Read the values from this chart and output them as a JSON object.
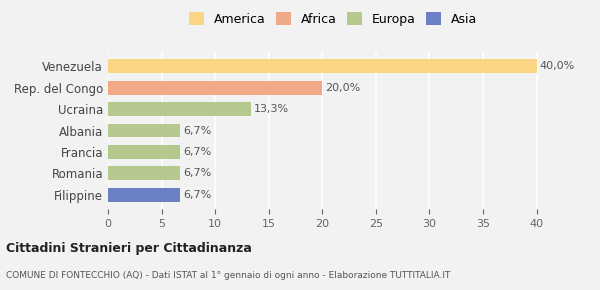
{
  "categories": [
    "Filippine",
    "Romania",
    "Francia",
    "Albania",
    "Ucraina",
    "Rep. del Congo",
    "Venezuela"
  ],
  "values": [
    6.7,
    6.7,
    6.7,
    6.7,
    13.3,
    20.0,
    40.0
  ],
  "bar_colors": [
    "#6b80c4",
    "#b5c98e",
    "#b5c98e",
    "#b5c98e",
    "#b5c98e",
    "#f0a987",
    "#f9d585"
  ],
  "labels": [
    "6,7%",
    "6,7%",
    "6,7%",
    "6,7%",
    "13,3%",
    "20,0%",
    "40,0%"
  ],
  "legend": [
    {
      "label": "America",
      "color": "#f9d585"
    },
    {
      "label": "Africa",
      "color": "#f0a987"
    },
    {
      "label": "Europa",
      "color": "#b5c98e"
    },
    {
      "label": "Asia",
      "color": "#6b80c4"
    }
  ],
  "xlim": [
    0,
    42
  ],
  "xticks": [
    0,
    5,
    10,
    15,
    20,
    25,
    30,
    35,
    40
  ],
  "title": "Cittadini Stranieri per Cittadinanza",
  "subtitle": "COMUNE DI FONTECCHIO (AQ) - Dati ISTAT al 1° gennaio di ogni anno - Elaborazione TUTTITALIA.IT",
  "background_color": "#f2f2f2",
  "grid_color": "#ffffff",
  "bar_height": 0.65
}
